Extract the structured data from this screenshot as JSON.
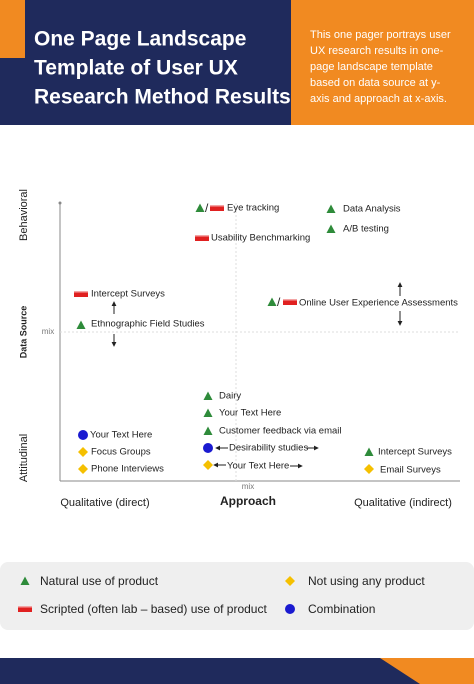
{
  "header": {
    "title": [
      "One Page Landscape",
      "Template of User UX",
      "Research Method Results"
    ],
    "description": [
      "This one pager portrays user",
      "UX research results in one-",
      "page landscape template",
      "based on data source at y-",
      "axis and approach at x-axis."
    ]
  },
  "axes": {
    "y_top": "Behavioral",
    "y_bottom": "Attitudinal",
    "y_title": "Data Source",
    "y_mid": "mix",
    "x_mid": "mix",
    "x_left": "Qualitative (direct)",
    "x_title": "Approach",
    "x_right": "Qualitative (indirect)"
  },
  "points": [
    "Eye tracking",
    "Data Analysis",
    "A/B testing",
    "Usability Benchmarking",
    "Intercept Surveys",
    "Ethnographic Field Studies",
    "Online User Experience Assessments",
    "Dairy",
    "Your Text Here",
    "Customer feedback via email",
    "Desirability studies",
    "Your Text Here",
    "Your Text Here",
    "Focus Groups",
    "Phone Interviews",
    "Intercept Surveys",
    "Email Surveys"
  ],
  "legend": [
    "Natural use of product",
    "Scripted (often lab – based) use of product",
    "Not using any product",
    "Combination"
  ]
}
